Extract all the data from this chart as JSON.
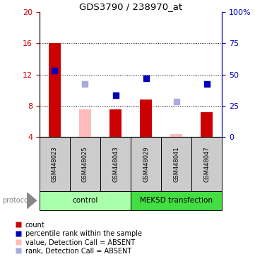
{
  "title": "GDS3790 / 238970_at",
  "samples": [
    "GSM448023",
    "GSM448025",
    "GSM448043",
    "GSM448029",
    "GSM448041",
    "GSM448047"
  ],
  "groups": [
    {
      "label": "control",
      "indices": [
        0,
        1,
        2
      ],
      "color": "#aaffaa"
    },
    {
      "label": "MEK5D transfection",
      "indices": [
        3,
        4,
        5
      ],
      "color": "#44dd44"
    }
  ],
  "left_ylim": [
    4,
    20
  ],
  "right_ylim": [
    0,
    100
  ],
  "left_yticks": [
    4,
    8,
    12,
    16,
    20
  ],
  "right_yticks": [
    0,
    25,
    50,
    75,
    100
  ],
  "right_yticklabels": [
    "0",
    "25",
    "50",
    "75",
    "100%"
  ],
  "dotted_lines": [
    8,
    12,
    16
  ],
  "bar_bottom": 4,
  "bars": [
    {
      "x": 0,
      "value": 16.0,
      "type": "count",
      "color": "#cc0000"
    },
    {
      "x": 1,
      "value": 7.5,
      "type": "absent_value",
      "color": "#ffbbbb"
    },
    {
      "x": 2,
      "value": 7.5,
      "type": "count",
      "color": "#cc0000"
    },
    {
      "x": 3,
      "value": 8.8,
      "type": "count",
      "color": "#cc0000"
    },
    {
      "x": 4,
      "value": 4.35,
      "type": "absent_value",
      "color": "#ffbbbb"
    },
    {
      "x": 5,
      "value": 7.2,
      "type": "count",
      "color": "#cc0000"
    }
  ],
  "squares": [
    {
      "x": 0,
      "value": 12.5,
      "type": "percentile",
      "color": "#0000bb"
    },
    {
      "x": 1,
      "value": 10.8,
      "type": "absent_rank",
      "color": "#aaaadd"
    },
    {
      "x": 2,
      "value": 9.3,
      "type": "percentile",
      "color": "#0000bb"
    },
    {
      "x": 3,
      "value": 11.5,
      "type": "percentile",
      "color": "#0000bb"
    },
    {
      "x": 4,
      "value": 8.5,
      "type": "absent_rank",
      "color": "#aaaadd"
    },
    {
      "x": 5,
      "value": 10.8,
      "type": "percentile",
      "color": "#0000bb"
    }
  ],
  "legend_items": [
    {
      "color": "#cc0000",
      "label": "count"
    },
    {
      "color": "#0000bb",
      "label": "percentile rank within the sample"
    },
    {
      "color": "#ffbbbb",
      "label": "value, Detection Call = ABSENT"
    },
    {
      "color": "#aaaadd",
      "label": "rank, Detection Call = ABSENT"
    }
  ],
  "protocol_label": "protocol",
  "left_axis_color": "#cc0000",
  "right_axis_color": "#0000bb",
  "sample_box_color": "#cccccc",
  "figsize": [
    3.61,
    3.84
  ],
  "dpi": 100
}
